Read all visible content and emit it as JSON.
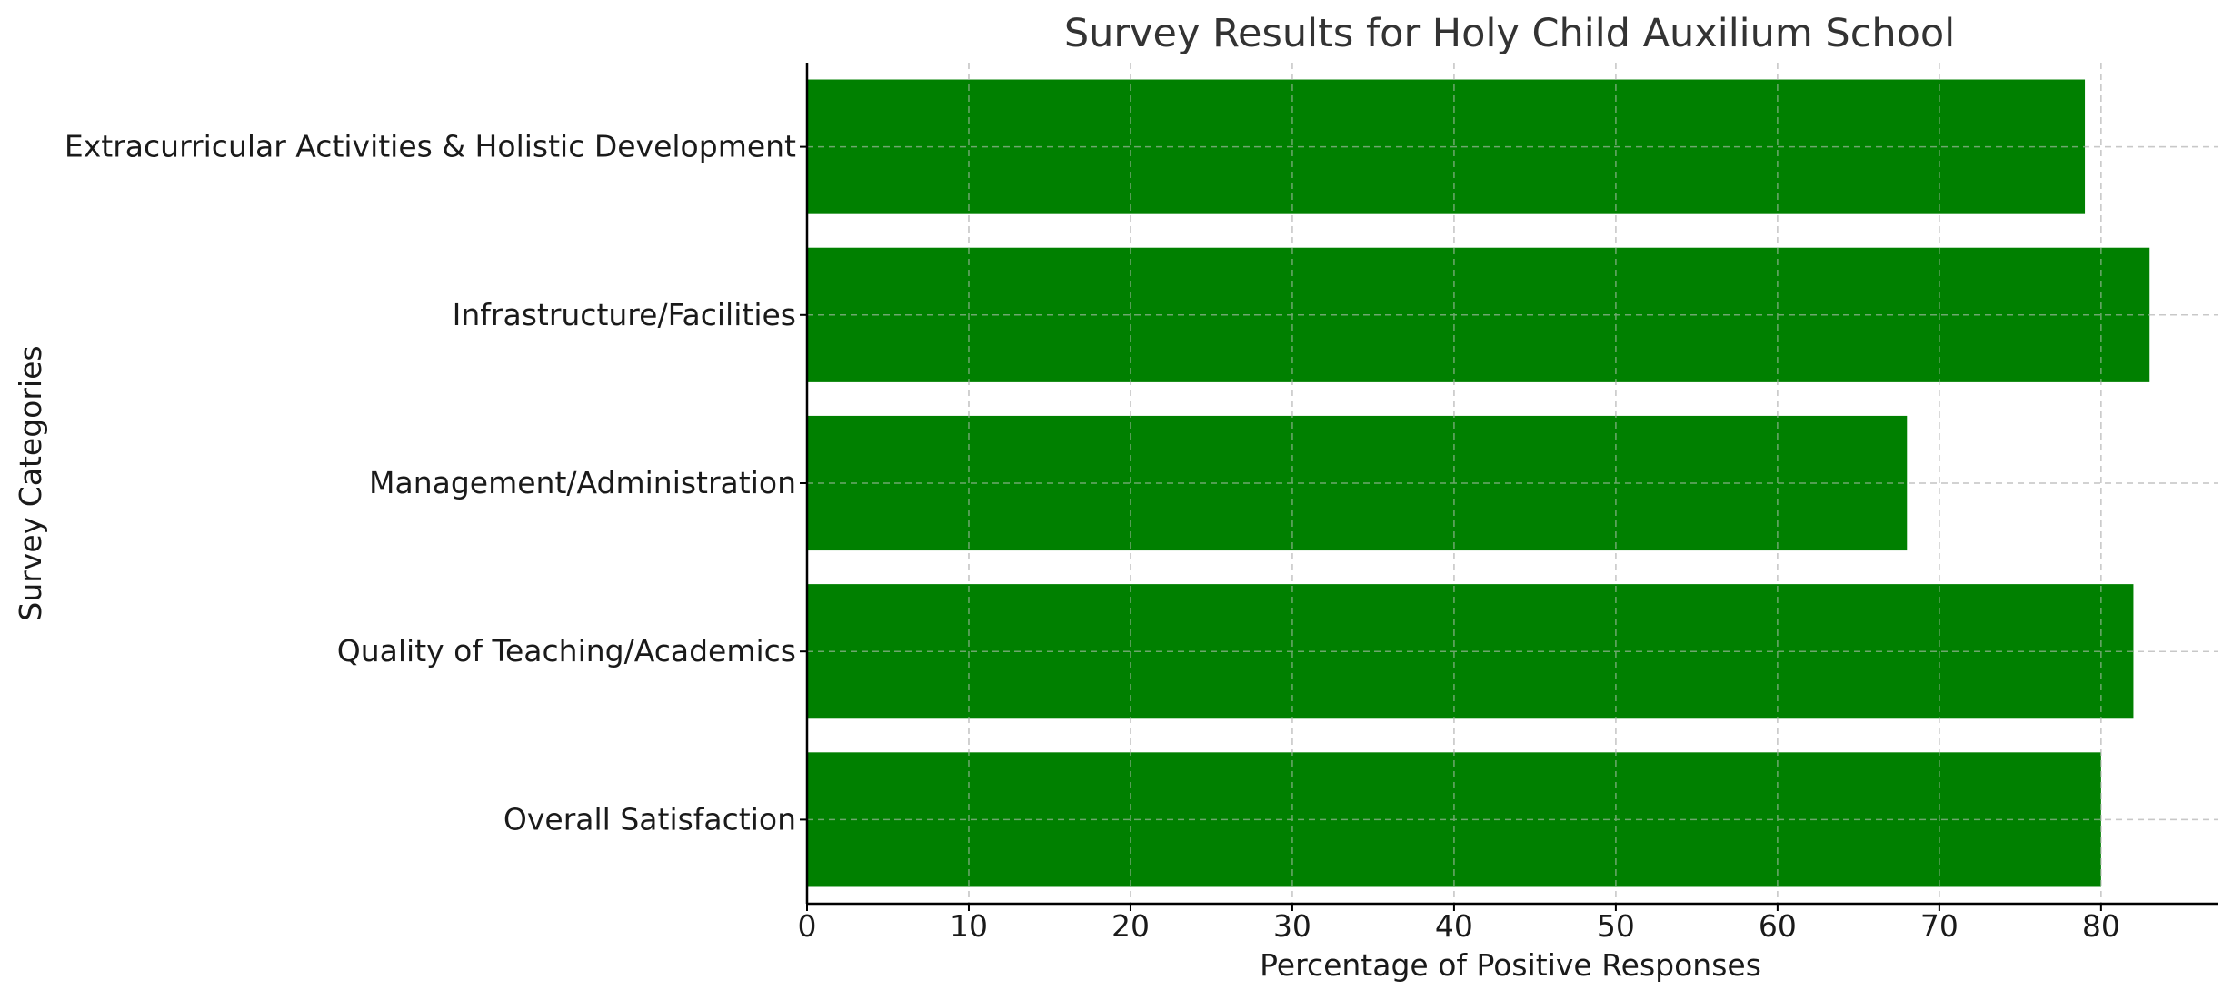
{
  "chart_data": {
    "type": "bar",
    "orientation": "horizontal",
    "title": "Survey Results for Holy Child Auxilium School",
    "xlabel": "Percentage of Positive Responses",
    "ylabel": "Survey Categories",
    "categories": [
      "Overall Satisfaction",
      "Quality of Teaching/Academics",
      "Management/Administration",
      "Infrastructure/Facilities",
      "Extracurricular Activities & Holistic Development"
    ],
    "values": [
      80,
      82,
      68,
      83,
      79
    ],
    "xlim": [
      0,
      87.2
    ],
    "xticks": [
      0,
      10,
      20,
      30,
      40,
      50,
      60,
      70,
      80
    ],
    "bar_color": "#008000",
    "grid": true
  }
}
